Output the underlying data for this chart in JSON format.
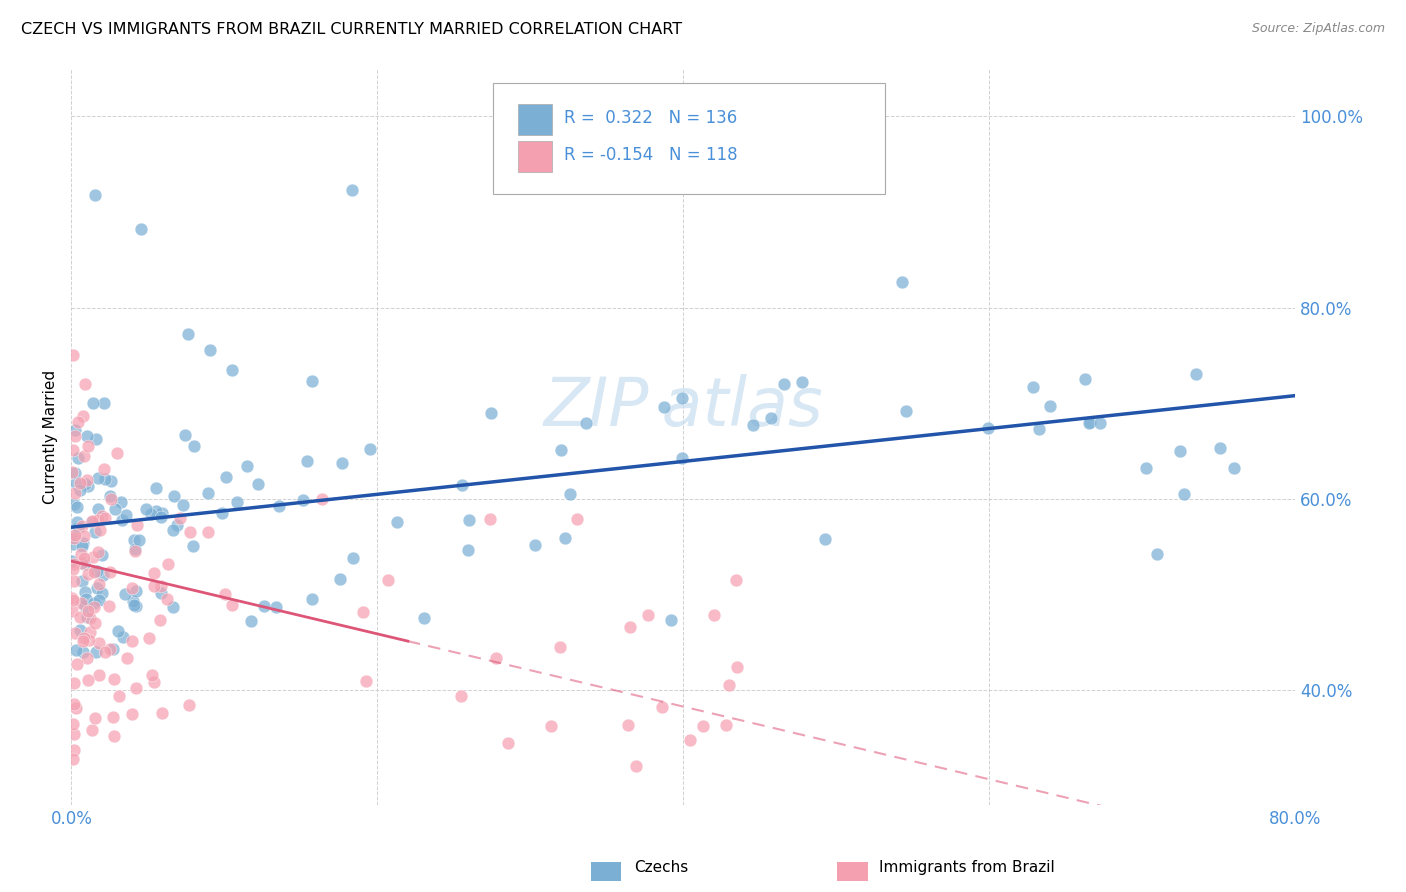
{
  "title": "CZECH VS IMMIGRANTS FROM BRAZIL CURRENTLY MARRIED CORRELATION CHART",
  "source": "Source: ZipAtlas.com",
  "ylabel": "Currently Married",
  "legend_label1": "Czechs",
  "legend_label2": "Immigrants from Brazil",
  "R1": 0.322,
  "N1": 136,
  "R2": -0.154,
  "N2": 118,
  "color_blue": "#7bafd4",
  "color_pink": "#f4a0b0",
  "color_text_blue": "#4a90d9",
  "trendline_blue": "#2255aa",
  "trendline_pink": "#dd5577",
  "watermark_color": "#c8ddf0",
  "background": "#ffffff",
  "grid_color": "#cccccc",
  "xlim": [
    0.0,
    0.8
  ],
  "ylim": [
    0.28,
    1.05
  ],
  "seed": 42
}
